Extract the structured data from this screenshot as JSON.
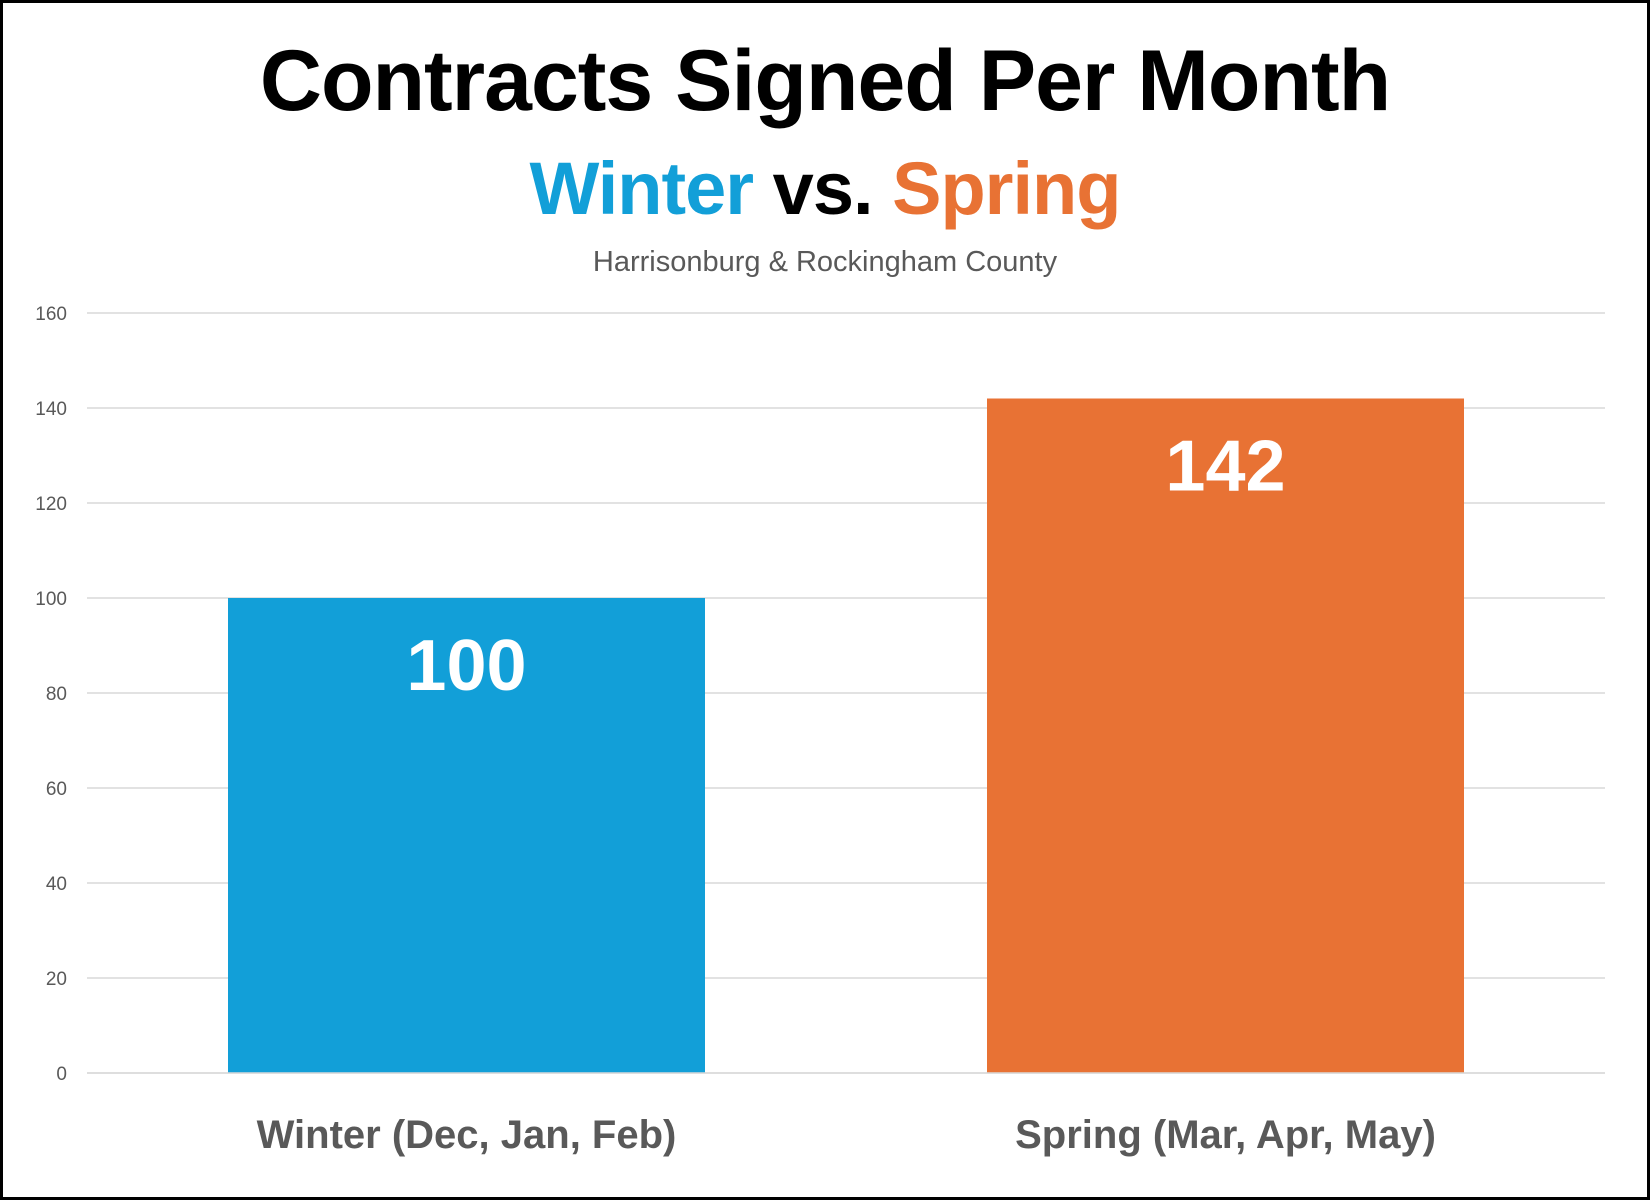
{
  "colors": {
    "winter": "#129fd8",
    "spring": "#e87234",
    "grid": "#d9d9d9",
    "tick_text": "#595959",
    "category_text": "#595959",
    "data_label": "#ffffff"
  },
  "chart_data": {
    "type": "bar",
    "title": "Contracts Signed Per Month",
    "subtitle": {
      "winter": "Winter",
      "vs": "vs.",
      "spring": "Spring"
    },
    "region": "Harrisonburg & Rockingham County",
    "categories": [
      "Winter (Dec, Jan, Feb)",
      "Spring (Mar, Apr, May)"
    ],
    "values": [
      100,
      142
    ],
    "data_labels": [
      "100",
      "142"
    ],
    "bar_colors": [
      "#129fd8",
      "#e87234"
    ],
    "ylim": [
      0,
      160
    ],
    "yticks": [
      0,
      20,
      40,
      60,
      80,
      100,
      120,
      140,
      160
    ],
    "grid": true,
    "legend": "none",
    "xlabel": "",
    "ylabel": ""
  }
}
